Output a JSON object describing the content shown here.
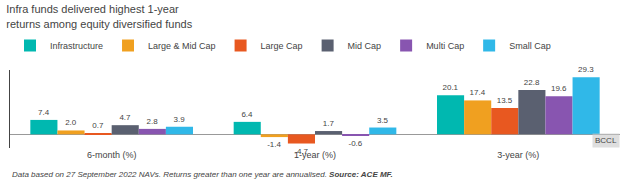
{
  "chart_data": {
    "type": "bar",
    "title": "Infra funds delivered highest 1-year",
    "subtitle": "returns among equity diversified funds",
    "categories": [
      "6-month (%)",
      "1-year (%)",
      "3-year (%)"
    ],
    "series": [
      {
        "name": "Infrastructure",
        "color": "#00b8b0",
        "values": [
          7.4,
          6.4,
          20.1
        ],
        "value_labels": [
          "7.4",
          "6.4",
          "20.1"
        ]
      },
      {
        "name": "Large & Mid Cap",
        "color": "#f0a020",
        "values": [
          2.0,
          -1.4,
          17.4
        ],
        "value_labels": [
          "2.0",
          "-1.4",
          "17.4"
        ]
      },
      {
        "name": "Large Cap",
        "color": "#e85820",
        "values": [
          0.7,
          -4.7,
          13.5
        ],
        "value_labels": [
          "0.7",
          "-4.7",
          "13.5"
        ]
      },
      {
        "name": "Mid Cap",
        "color": "#5a6070",
        "values": [
          4.7,
          1.7,
          22.8
        ],
        "value_labels": [
          "4.7",
          "1.7",
          "22.8"
        ]
      },
      {
        "name": "Multi Cap",
        "color": "#8855b0",
        "values": [
          2.8,
          -0.6,
          19.6
        ],
        "value_labels": [
          "2.8",
          "-0.6",
          "19.6"
        ]
      },
      {
        "name": "Small Cap",
        "color": "#30b8e8",
        "values": [
          3.9,
          3.5,
          29.3
        ],
        "value_labels": [
          "3.9",
          "3.5",
          "29.3"
        ]
      }
    ],
    "ylim": [
      -7.0,
      33.0
    ],
    "data_labels": true,
    "tick_labels": "x",
    "grid": false,
    "legend": "upper left",
    "annotations": [
      "BCCL",
      "Data based on 27 September 2022 NAVs. Returns greater than one year are annualised.",
      "Source: ACE MF."
    ]
  }
}
